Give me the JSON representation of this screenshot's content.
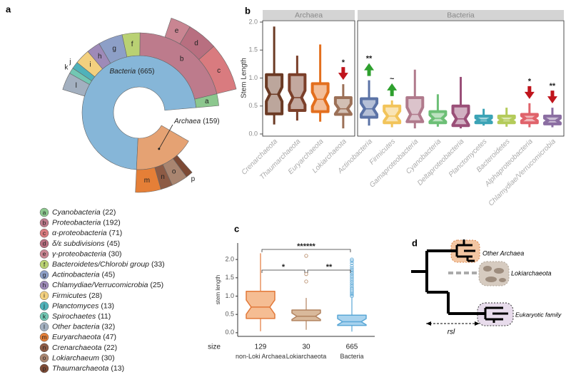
{
  "panel_labels": [
    "a",
    "b",
    "c",
    "d"
  ],
  "chart_data": [
    {
      "type": "sunburst",
      "groups": [
        {
          "name": "Bacteria",
          "value": 665,
          "value_label": "(665)",
          "color": "#86b6d8",
          "children": [
            {
              "letter": "a",
              "name": "Cyanobacteria",
              "value": 22,
              "value_label": "(22)",
              "color": "#8cc78e"
            },
            {
              "letter": "b",
              "name": "Proteobacteria",
              "value": 192,
              "value_label": "(192)",
              "color": "#bd7b8c",
              "children": [
                {
                  "letter": "c",
                  "name": "α-proteobacteria",
                  "value": 71,
                  "value_label": "(71)",
                  "color": "#d97b7f"
                },
                {
                  "letter": "d",
                  "name": "δ/ε subdivisions",
                  "value": 45,
                  "value_label": "(45)",
                  "color": "#b86f80"
                },
                {
                  "letter": "e",
                  "name": "γ-proteobacteria",
                  "value": 30,
                  "value_label": "(30)",
                  "color": "#c98592"
                }
              ]
            },
            {
              "letter": "f",
              "name": "Bacteroidetes/Chlorobi group",
              "value": 33,
              "value_label": "(33)",
              "color": "#b9d173"
            },
            {
              "letter": "g",
              "name": "Actinobacteria",
              "value": 45,
              "value_label": "(45)",
              "color": "#8d9fc7"
            },
            {
              "letter": "h",
              "name": "Chlamydiae/Verrucomicrobia",
              "value": 25,
              "value_label": "(25)",
              "color": "#9e8ab8"
            },
            {
              "letter": "i",
              "name": "Firmicutes",
              "value": 28,
              "value_label": "(28)",
              "color": "#f3d07f"
            },
            {
              "letter": "j",
              "name": "Planctomyces",
              "value": 13,
              "value_label": "(13)",
              "color": "#4fb2ba"
            },
            {
              "letter": "k",
              "name": "Spirochaetes",
              "value": 11,
              "value_label": "(11)",
              "color": "#72c7b3"
            },
            {
              "letter": "l",
              "name": "Other bacteria",
              "value": 32,
              "value_label": "(32)",
              "color": "#a3b0c0"
            }
          ]
        },
        {
          "name": "Archaea",
          "value": 159,
          "value_label": "(159)",
          "color": "#e5a273",
          "children": [
            {
              "letter": "m",
              "name": "Euryarchaeota",
              "value": 47,
              "value_label": "(47)",
              "color": "#e57f37"
            },
            {
              "letter": "n",
              "name": "Crenarchaeota",
              "value": 22,
              "value_label": "(22)",
              "color": "#8d5b45"
            },
            {
              "letter": "o",
              "name": "Lokiarchaeum",
              "value": 30,
              "value_label": "(30)",
              "color": "#a98570"
            },
            {
              "letter": "p",
              "name": "Thaumarchaeota",
              "value": 13,
              "value_label": "(13)",
              "color": "#7d4a35"
            }
          ]
        }
      ]
    },
    {
      "type": "boxplot",
      "y_label": "Stem Length",
      "ylim": [
        0,
        2
      ],
      "yticks": [
        {
          "value": 0,
          "label": "0.0"
        },
        0.5,
        {
          "value": 1,
          "label": "1.0"
        },
        1.5,
        {
          "value": 2,
          "label": "2.0"
        }
      ],
      "facets": [
        {
          "title": "Archaea",
          "categories": [
            "Crenarchaeota",
            "Thaumarchaeota",
            "Euryarchaeota",
            "Lokiarchaeota"
          ],
          "boxes": [
            {
              "color": "#6b3a24",
              "whisker_low": 0.17,
              "q1": 0.36,
              "median": 0.71,
              "q3": 1.06,
              "whisker_high": 1.92
            },
            {
              "color": "#7b3f2a",
              "whisker_low": 0.24,
              "q1": 0.42,
              "median": 0.65,
              "q3": 1.06,
              "whisker_high": 1.4
            },
            {
              "color": "#e36f1e",
              "whisker_low": 0.22,
              "q1": 0.4,
              "median": 0.62,
              "q3": 0.9,
              "whisker_high": 1.6
            },
            {
              "color": "#9c7057",
              "whisker_low": 0.1,
              "q1": 0.35,
              "median": 0.45,
              "q3": 0.65,
              "whisker_high": 0.89,
              "signif": {
                "text": "*",
                "direction": "down",
                "color": "#c0141c"
              }
            }
          ]
        },
        {
          "title": "Bacteria",
          "categories": [
            "Actinobacteria",
            "Firmicutes",
            "Gamaproteobacteria",
            "Cyanobacteria",
            "Deltaproteobacteria",
            "Planctomycetes",
            "Bacteroidetes",
            "Alphaproteobacteria",
            "Chlamydiae/Verrucomicrobia"
          ],
          "boxes": [
            {
              "color": "#5b73a6",
              "whisker_low": 0.15,
              "q1": 0.3,
              "median": 0.45,
              "q3": 0.63,
              "whisker_high": 0.96,
              "signif": {
                "text": "**",
                "direction": "up",
                "color": "#2ea02e"
              }
            },
            {
              "color": "#f2c45a",
              "whisker_low": 0.12,
              "q1": 0.2,
              "median": 0.32,
              "q3": 0.5,
              "whisker_high": 0.6,
              "signif": {
                "text": "~",
                "direction": "up",
                "color": "#2ea02e"
              }
            },
            {
              "color": "#b07a8c",
              "whisker_low": 0.1,
              "q1": 0.22,
              "median": 0.35,
              "q3": 0.65,
              "whisker_high": 1.15
            },
            {
              "color": "#6cbf76",
              "whisker_low": 0.13,
              "q1": 0.2,
              "median": 0.28,
              "q3": 0.4,
              "whisker_high": 0.71
            },
            {
              "color": "#9a4f78",
              "whisker_low": 0.1,
              "q1": 0.15,
              "median": 0.27,
              "q3": 0.5,
              "whisker_high": 1.02
            },
            {
              "color": "#3ba3b6",
              "whisker_low": 0.15,
              "q1": 0.2,
              "median": 0.25,
              "q3": 0.32,
              "whisker_high": 0.45
            },
            {
              "color": "#b4cb5a",
              "whisker_low": 0.13,
              "q1": 0.2,
              "median": 0.25,
              "q3": 0.32,
              "whisker_high": 0.47
            },
            {
              "color": "#e0636b",
              "whisker_low": 0.12,
              "q1": 0.2,
              "median": 0.28,
              "q3": 0.35,
              "whisker_high": 0.55,
              "signif": {
                "text": "*",
                "direction": "down",
                "color": "#c0141c"
              }
            },
            {
              "color": "#8b6ea2",
              "whisker_low": 0.12,
              "q1": 0.18,
              "median": 0.24,
              "q3": 0.32,
              "whisker_high": 0.47,
              "signif": {
                "text": "**",
                "direction": "down",
                "color": "#c0141c"
              }
            }
          ]
        }
      ]
    },
    {
      "type": "boxplot",
      "y_label": "stem length",
      "ylim": [
        -0.1,
        2.45
      ],
      "yticks": [
        {
          "value": 0,
          "label": "0.0"
        },
        0.5,
        {
          "value": 1,
          "label": "1.0"
        },
        1.5,
        {
          "value": 2,
          "label": "2.0"
        }
      ],
      "categories": [
        "non-Loki Archaea",
        "Lokiarchaeota",
        "Bacteria"
      ],
      "size_label": "size",
      "sizes": [
        129,
        30,
        665
      ],
      "boxes": [
        {
          "color": "#e2793a",
          "fill": "#f5bd93",
          "whisker_low": 0.04,
          "q1": 0.39,
          "median": 0.7,
          "q3": 1.13,
          "whisker_high": 2.17
        },
        {
          "color": "#b2835f",
          "fill": "#d9b99b",
          "whisker_low": 0.08,
          "q1": 0.33,
          "median": 0.45,
          "q3": 0.62,
          "whisker_high": 0.95,
          "outliers": [
            1.4,
            1.6,
            2.1
          ]
        },
        {
          "color": "#5aa7d6",
          "fill": "#a9d3ee",
          "whisker_low": 0.03,
          "q1": 0.2,
          "median": 0.3,
          "q3": 0.48,
          "whisker_high": 0.95,
          "outliers": [
            1.0,
            1.03,
            1.06,
            1.1,
            1.14,
            1.18,
            1.22,
            1.27,
            1.32,
            1.37,
            1.42,
            1.47,
            1.52,
            1.57,
            1.62,
            1.67,
            1.72,
            1.77,
            1.83,
            1.9,
            1.96,
            2.0
          ]
        }
      ],
      "comparisons": [
        {
          "pair": [
            0,
            2
          ],
          "label": "******"
        },
        {
          "pair": [
            0,
            1
          ],
          "label": "*"
        },
        {
          "pair": [
            1,
            2
          ],
          "label": "**"
        }
      ]
    }
  ],
  "diagram": {
    "nodes": [
      {
        "label": "Other Archaea"
      },
      {
        "label": "Lokiarchaeota"
      },
      {
        "label": "Eukaryotic family"
      }
    ],
    "edge_label": "rsl"
  }
}
